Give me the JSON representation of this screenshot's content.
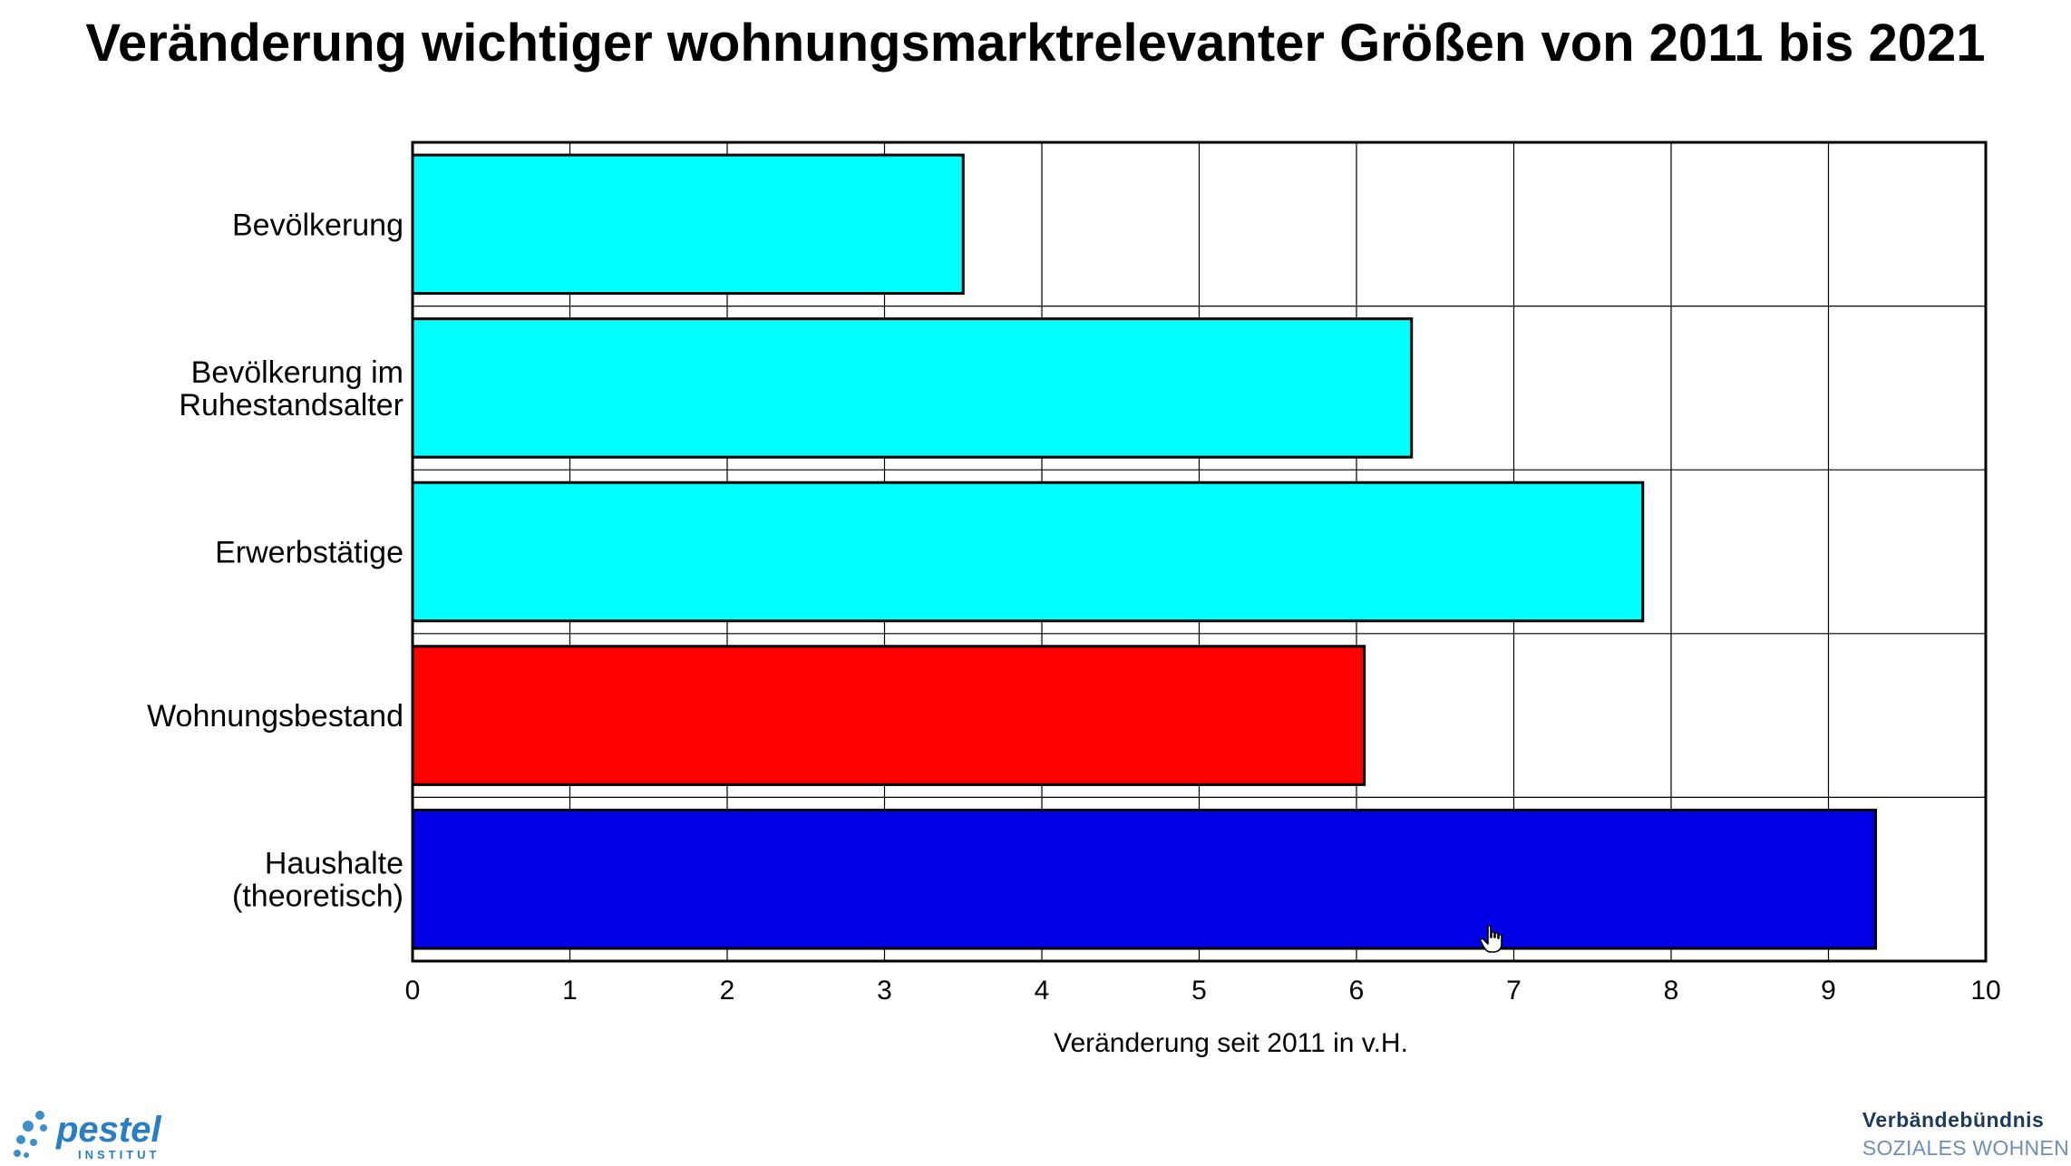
{
  "chart_data": {
    "type": "bar",
    "orientation": "horizontal",
    "title": "Veränderung wichtiger wohnungsmarktrelevanter Größen von 2011 bis 2021",
    "xlabel": "Veränderung seit 2011 in v.H.",
    "ylabel": "",
    "xlim": [
      0,
      10
    ],
    "xticks": [
      "0",
      "1",
      "2",
      "3",
      "4",
      "5",
      "6",
      "7",
      "8",
      "9",
      "10"
    ],
    "grid": true,
    "categories": [
      [
        "Bevölkerung"
      ],
      [
        "Bevölkerung im",
        "Ruhestandsalter"
      ],
      [
        "Erwerbstätige"
      ],
      [
        "Wohnungsbestand"
      ],
      [
        "Haushalte",
        "(theoretisch)"
      ]
    ],
    "values": [
      3.5,
      6.35,
      7.82,
      6.05,
      9.3
    ],
    "colors": [
      "#00ffff",
      "#00ffff",
      "#00ffff",
      "#ff0000",
      "#0000e6"
    ]
  },
  "logos": {
    "left_name": "pestel",
    "left_sub": "INSTITUT",
    "right_line1": "Verbändebündnis",
    "right_line2": "SOZIALES WOHNEN"
  }
}
